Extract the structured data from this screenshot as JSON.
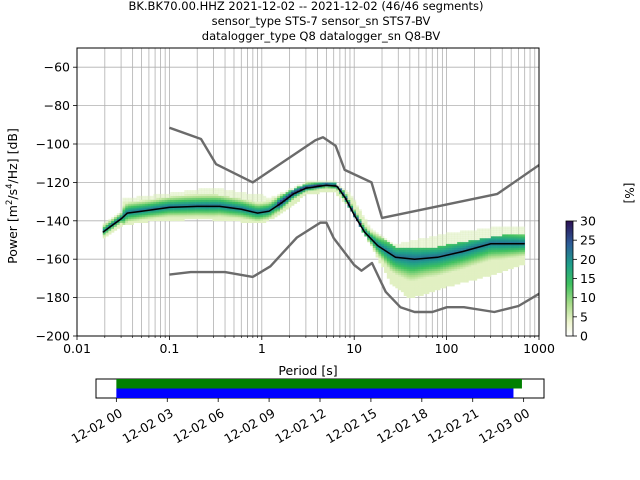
{
  "chart_data": [
    {
      "type": "heatmap",
      "title_lines": [
        "BK.BK70.00.HHZ   2021-12-02 -- 2021-12-02  (46/46 segments)",
        "sensor_type STS-7 sensor_sn STS7-BV",
        "datalogger_type Q8 datalogger_sn Q8-BV"
      ],
      "xlabel": "Period [s]",
      "ylabel": "Power [m²/s⁴/Hz] [dB]",
      "ylabel_parts": {
        "pre": "Power [m",
        "sup1": "2",
        "mid": "/s",
        "sup2": "4",
        "post": "/Hz] [dB]"
      },
      "xscale": "log",
      "xlim": [
        0.01,
        1000
      ],
      "ylim": [
        -200,
        -50
      ],
      "xtick_values": [
        0.01,
        0.1,
        1,
        10,
        100,
        1000
      ],
      "xtick_labels": [
        "0.01",
        "0.1",
        "1",
        "10",
        "100",
        "1000"
      ],
      "ytick_values": [
        -60,
        -80,
        -100,
        -120,
        -140,
        -160,
        -180,
        -200
      ],
      "ytick_labels": [
        "−60",
        "−80",
        "−100",
        "−120",
        "−140",
        "−160",
        "−180",
        "−200"
      ],
      "grid": true,
      "noise_model_high": [
        [
          0.1,
          -91.5
        ],
        [
          0.22,
          -97.4
        ],
        [
          0.32,
          -110.5
        ],
        [
          0.8,
          -120
        ],
        [
          3.8,
          -98
        ],
        [
          4.6,
          -96.5
        ],
        [
          6.3,
          -101
        ],
        [
          7.9,
          -113.5
        ],
        [
          15.4,
          -120
        ],
        [
          20,
          -138.5
        ],
        [
          354.8,
          -126
        ],
        [
          1000,
          -111
        ]
      ],
      "noise_model_low": [
        [
          0.1,
          -168
        ],
        [
          0.17,
          -166.7
        ],
        [
          0.4,
          -166.7
        ],
        [
          0.8,
          -169.2
        ],
        [
          1.24,
          -163.7
        ],
        [
          2.4,
          -148.7
        ],
        [
          4.3,
          -141
        ],
        [
          5,
          -141
        ],
        [
          6,
          -149
        ],
        [
          10,
          -163
        ],
        [
          12,
          -166
        ],
        [
          15.6,
          -162
        ],
        [
          21.9,
          -177
        ],
        [
          31.6,
          -185
        ],
        [
          45,
          -187.5
        ],
        [
          70,
          -187.5
        ],
        [
          101,
          -185
        ],
        [
          154,
          -185
        ],
        [
          328,
          -187.5
        ],
        [
          600,
          -184.4
        ],
        [
          1000,
          -178
        ]
      ],
      "psd_median": [
        [
          0.019,
          -146
        ],
        [
          0.023,
          -143
        ],
        [
          0.03,
          -139
        ],
        [
          0.035,
          -136
        ],
        [
          0.05,
          -135
        ],
        [
          0.1,
          -133
        ],
        [
          0.2,
          -132.5
        ],
        [
          0.35,
          -132.5
        ],
        [
          0.6,
          -134
        ],
        [
          0.9,
          -136
        ],
        [
          1.2,
          -135
        ],
        [
          1.6,
          -131
        ],
        [
          2.2,
          -126
        ],
        [
          3,
          -123
        ],
        [
          5,
          -121.5
        ],
        [
          6.5,
          -122
        ],
        [
          8,
          -128
        ],
        [
          10,
          -137
        ],
        [
          13,
          -146
        ],
        [
          18,
          -153
        ],
        [
          28,
          -159
        ],
        [
          45,
          -160
        ],
        [
          80,
          -159
        ],
        [
          150,
          -156
        ],
        [
          300,
          -152
        ],
        [
          700,
          -152
        ]
      ],
      "psd_upper": [
        [
          0.03,
          -131
        ],
        [
          0.06,
          -129.5
        ],
        [
          0.15,
          -127
        ],
        [
          0.3,
          -126.5
        ],
        [
          0.6,
          -129
        ],
        [
          1,
          -131
        ],
        [
          1.6,
          -127
        ],
        [
          3,
          -121
        ],
        [
          6,
          -120.5
        ],
        [
          9,
          -127
        ],
        [
          15,
          -145
        ],
        [
          28,
          -154
        ],
        [
          60,
          -155
        ],
        [
          150,
          -151.5
        ],
        [
          400,
          -148
        ],
        [
          700,
          -147.5
        ]
      ],
      "psd_lower": [
        [
          0.03,
          -142
        ],
        [
          0.06,
          -140
        ],
        [
          0.15,
          -139
        ],
        [
          0.3,
          -139
        ],
        [
          0.6,
          -140
        ],
        [
          1,
          -141
        ],
        [
          1.6,
          -136
        ],
        [
          3,
          -126
        ],
        [
          6,
          -124
        ],
        [
          9,
          -133
        ],
        [
          15,
          -152
        ],
        [
          25,
          -172
        ],
        [
          40,
          -180
        ],
        [
          100,
          -174
        ],
        [
          300,
          -168
        ],
        [
          700,
          -162
        ]
      ],
      "psd_upper_faint": [
        [
          0.03,
          -130
        ],
        [
          0.1,
          -127
        ],
        [
          0.3,
          -124
        ],
        [
          0.7,
          -127
        ],
        [
          1,
          -128
        ],
        [
          20,
          -155
        ],
        [
          100,
          -148
        ],
        [
          300,
          -145
        ],
        [
          700,
          -144
        ]
      ],
      "colorbar": {
        "label": "[%]",
        "min": 0,
        "max": 30,
        "tick_values": [
          0,
          5,
          10,
          15,
          20,
          25,
          30
        ],
        "tick_labels": [
          "0",
          "5",
          "10",
          "15",
          "20",
          "25",
          "30"
        ],
        "colormap": "pqlx"
      },
      "colors": {
        "noise_model": "#6b6b6b",
        "median": "#000000",
        "grid": "#b0b0b0"
      }
    },
    {
      "type": "timeline",
      "tick_labels": [
        "12-02 00",
        "12-02 03",
        "12-02 06",
        "12-02 09",
        "12-02 12",
        "12-02 15",
        "12-02 18",
        "12-02 21",
        "12-03 00"
      ],
      "tick_hours": [
        0,
        3,
        6,
        9,
        12,
        15,
        18,
        21,
        24
      ],
      "xlim_hours": [
        -1.2,
        25.2
      ],
      "bars": [
        {
          "start_hour": 0,
          "end_hour": 23.9,
          "color": "#008000"
        },
        {
          "start_hour": 0,
          "end_hour": 23.4,
          "color": "#0000ff"
        }
      ]
    }
  ]
}
